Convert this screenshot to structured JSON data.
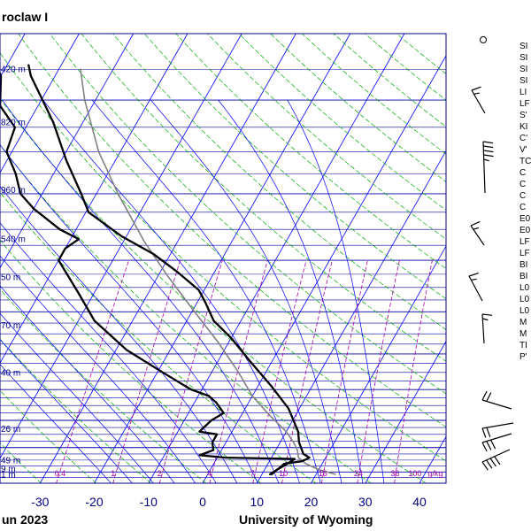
{
  "header": {
    "title": "roclaw I",
    "footer_left": "un 2023",
    "footer_right": "University of Wyoming"
  },
  "chart_data": {
    "type": "line",
    "title": "roclaw I",
    "xlabel": "",
    "ylabel": "",
    "xlim": [
      -35,
      45
    ],
    "x_ticks": [
      -30,
      -20,
      -10,
      0,
      10,
      20,
      30,
      40
    ],
    "height_labels": [
      {
        "label": "420 m",
        "p": 175
      },
      {
        "label": "820 m",
        "p": 220
      },
      {
        "label": "960 m",
        "p": 295
      },
      {
        "label": "540 m",
        "p": 365
      },
      {
        "label": "50 m",
        "p": 430
      },
      {
        "label": "70 m",
        "p": 530
      },
      {
        "label": "40 m",
        "p": 650
      },
      {
        "label": "26 m",
        "p": 830
      },
      {
        "label": "49 m",
        "p": 950
      },
      {
        "label": "9 m",
        "p": 985
      },
      {
        "label": "1 m",
        "p": 1010
      }
    ],
    "mixing_ratio_labels": [
      "0.4",
      "1",
      "2",
      "4",
      "7",
      "10",
      "16",
      "24",
      "36",
      "100",
      "g/kg"
    ],
    "mixing_ratios": [
      0.4,
      1,
      2,
      4,
      7,
      10,
      16,
      24,
      36
    ],
    "dry_adiabats_K": [
      230,
      240,
      250,
      260,
      270,
      280,
      290,
      300,
      310,
      320,
      330,
      340,
      350,
      360,
      370,
      380,
      390,
      400,
      410,
      420,
      430,
      440,
      450
    ],
    "moist_adiabats_C": [
      -20,
      -16,
      -12,
      -8,
      -4,
      0,
      4,
      8,
      12,
      16,
      20,
      24,
      28,
      32
    ],
    "series": [
      {
        "name": "",
        "values": [
          {
            "p": 1010,
            "t": 23.5
          },
          {
            "p": 990,
            "t": 20
          },
          {
            "p": 965,
            "t": 17
          },
          {
            "p": 940,
            "t": 15
          },
          {
            "p": 910,
            "t": 14
          },
          {
            "p": 880,
            "t": 12.5
          },
          {
            "p": 840,
            "t": 10
          },
          {
            "p": 780,
            "t": 5
          },
          {
            "p": 720,
            "t": 0
          },
          {
            "p": 650,
            "t": -5
          },
          {
            "p": 570,
            "t": -12
          },
          {
            "p": 500,
            "t": -19.5
          },
          {
            "p": 430,
            "t": -28
          },
          {
            "p": 370,
            "t": -36
          },
          {
            "p": 300,
            "t": -46
          },
          {
            "p": 250,
            "t": -54
          },
          {
            "p": 200,
            "t": -62
          },
          {
            "p": 175,
            "t": -66
          }
        ]
      },
      {
        "name": "",
        "values": [
          {
            "p": 1010,
            "t": 11.5
          },
          {
            "p": 985,
            "t": 12.5
          },
          {
            "p": 965,
            "t": 13
          },
          {
            "p": 955,
            "t": 16
          },
          {
            "p": 940,
            "t": 17
          },
          {
            "p": 925,
            "t": 15.5
          },
          {
            "p": 880,
            "t": 13.5
          },
          {
            "p": 840,
            "t": 12.2
          },
          {
            "p": 760,
            "t": 8
          },
          {
            "p": 690,
            "t": 2.5
          },
          {
            "p": 620,
            "t": -4
          },
          {
            "p": 560,
            "t": -10
          },
          {
            "p": 520,
            "t": -15
          },
          {
            "p": 480,
            "t": -18.5
          },
          {
            "p": 455,
            "t": -21
          },
          {
            "p": 420,
            "t": -27
          },
          {
            "p": 390,
            "t": -33
          },
          {
            "p": 360,
            "t": -41
          },
          {
            "p": 325,
            "t": -49.5
          },
          {
            "p": 300,
            "t": -52.8
          },
          {
            "p": 260,
            "t": -59
          },
          {
            "p": 220,
            "t": -65.5
          },
          {
            "p": 180,
            "t": -74.5
          },
          {
            "p": 172,
            "t": -76
          }
        ]
      },
      {
        "name": "",
        "values": [
          {
            "p": 1010,
            "t": 11.8
          },
          {
            "p": 990,
            "t": 12.3
          },
          {
            "p": 965,
            "t": 13.6
          },
          {
            "p": 945,
            "t": 14.4
          },
          {
            "p": 940,
            "t": 1.5
          },
          {
            "p": 930,
            "t": -3.5
          },
          {
            "p": 910,
            "t": -1.5
          },
          {
            "p": 880,
            "t": -2.5
          },
          {
            "p": 850,
            "t": -2.5
          },
          {
            "p": 840,
            "t": -6
          },
          {
            "p": 800,
            "t": -5
          },
          {
            "p": 775,
            "t": -3.5
          },
          {
            "p": 740,
            "t": -6
          },
          {
            "p": 720,
            "t": -8
          },
          {
            "p": 700,
            "t": -12
          },
          {
            "p": 650,
            "t": -19
          },
          {
            "p": 590,
            "t": -28
          },
          {
            "p": 520,
            "t": -37
          },
          {
            "p": 460,
            "t": -43
          },
          {
            "p": 400,
            "t": -50
          },
          {
            "p": 380,
            "t": -50
          },
          {
            "p": 365,
            "t": -48.5
          },
          {
            "p": 350,
            "t": -53
          },
          {
            "p": 320,
            "t": -60
          },
          {
            "p": 300,
            "t": -64
          },
          {
            "p": 275,
            "t": -67
          },
          {
            "p": 250,
            "t": -71
          },
          {
            "p": 225,
            "t": -72
          },
          {
            "p": 205,
            "t": -77
          },
          {
            "p": 180,
            "t": -80
          },
          {
            "p": 172,
            "t": -82
          }
        ]
      }
    ],
    "indices": [
      "SI",
      "SI",
      "SI",
      "SI",
      "LI",
      "LF",
      "S'",
      "KI",
      "C'",
      "V'",
      "TC",
      "C",
      "C",
      "C",
      "C",
      "E0",
      "E0",
      "LF",
      "LF",
      "BI",
      "BI",
      "L0",
      "L0",
      "L0",
      "M",
      "M",
      "TI",
      "P'"
    ],
    "colors": {
      "isobar": "#0000a0",
      "isotherm": "#0000ff",
      "dry_adiabat": "#00aa00",
      "moist_adiabat": "#0000ff",
      "mixing_ratio": "#aa00aa",
      "temperature": "#000000",
      "dewpoint": "#000000",
      "parcel": "#808080",
      "tick_labels": "#000080"
    }
  }
}
